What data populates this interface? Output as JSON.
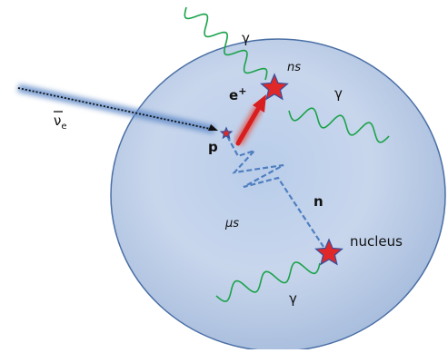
{
  "labels": {
    "gamma_top": "γ",
    "ns": "ns",
    "positron": "e",
    "positron_sup": "+",
    "gamma_right": "γ",
    "antineutrino": "ν",
    "antineutrino_sub": "e",
    "proton": "p",
    "neutron": "n",
    "mu_s": "μs",
    "nucleus": "nucleus",
    "gamma_bottom": "γ"
  }
}
